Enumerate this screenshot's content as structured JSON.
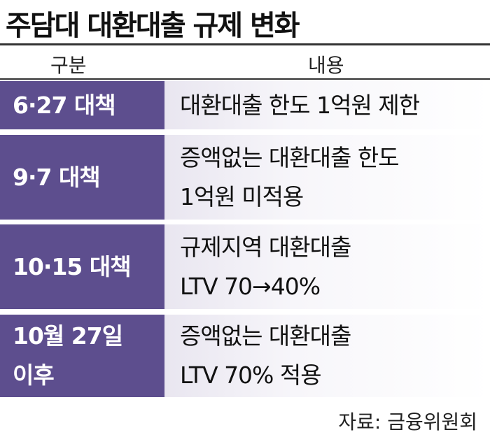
{
  "header": {
    "title": "주담대 대환대출 규제 변화"
  },
  "table": {
    "columns": [
      "구분",
      "내용"
    ],
    "rows": [
      {
        "label": [
          "6·27 대책"
        ],
        "content": [
          "대환대출 한도 1억원 제한"
        ]
      },
      {
        "label": [
          "9·7 대책"
        ],
        "content": [
          "증액없는 대환대출 한도",
          "1억원 미적용"
        ]
      },
      {
        "label": [
          "10·15 대책"
        ],
        "content": [
          "규제지역 대환대출",
          "LTV 70→40%"
        ]
      },
      {
        "label": [
          "10월 27일",
          "이후"
        ],
        "content": [
          "증액없는 대환대출",
          "LTV 70% 적용"
        ]
      }
    ]
  },
  "footer": {
    "source": "자료: 금융위원회"
  }
}
